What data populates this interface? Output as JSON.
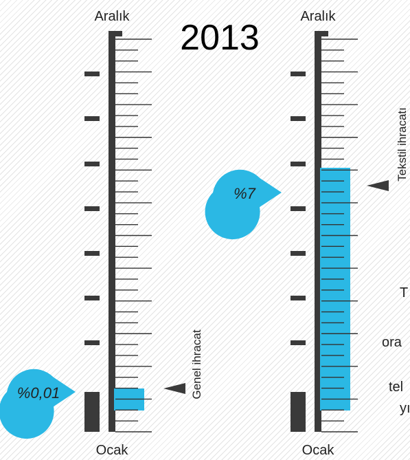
{
  "chart_data": {
    "type": "bar",
    "title": "2013",
    "categories": [
      "Genel ihracat",
      "Tekstil ihracatı"
    ],
    "series": [
      {
        "values": [
          0.01,
          7
        ]
      }
    ],
    "value_labels": [
      "%0,01",
      "%7"
    ],
    "axis_top_label": "Aralık",
    "axis_bottom_label": "Ocak",
    "bar_color": "#2bb8e4",
    "thermometer_color": "#3a3a3a",
    "title_color": "#2bb8e4"
  },
  "side_text": {
    "line1": "T",
    "line2": "ora",
    "line3": "tel",
    "line4": "yı"
  }
}
